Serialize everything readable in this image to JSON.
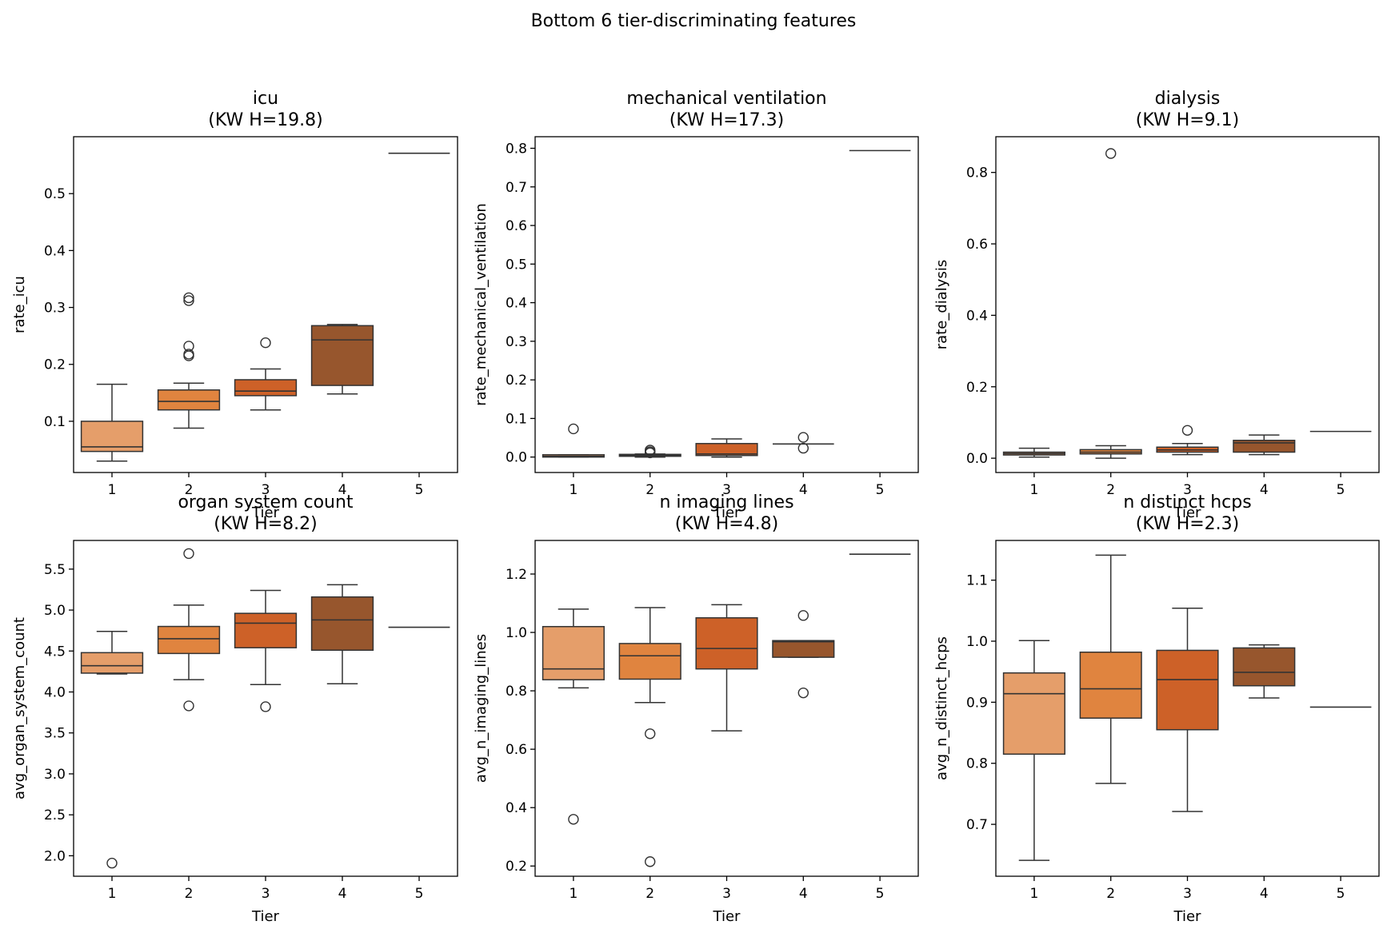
{
  "title": "Bottom 6 tier-discriminating features",
  "colors": {
    "tier1": "#e59e6a",
    "tier2": "#e0843f",
    "tier3": "#cd6128",
    "tier4": "#97562d",
    "tier5": "#8c4a20"
  },
  "chart_data": [
    {
      "type": "box",
      "title": "icu",
      "subtitle": "(KW H=19.8)",
      "xlabel": "Tier",
      "ylabel": "rate_icu",
      "categories": [
        "1",
        "2",
        "3",
        "4",
        "5"
      ],
      "ylim": [
        0.01,
        0.6
      ],
      "yticks": [
        0.1,
        0.2,
        0.3,
        0.4,
        0.5
      ],
      "ytick_labels": [
        "0.1",
        "0.2",
        "0.3",
        "0.4",
        "0.5"
      ],
      "boxes": [
        {
          "tier": "1",
          "whislo": 0.03,
          "q1": 0.047,
          "med": 0.055,
          "q3": 0.1,
          "whishi": 0.165,
          "fliers": []
        },
        {
          "tier": "2",
          "whislo": 0.088,
          "q1": 0.12,
          "med": 0.135,
          "q3": 0.155,
          "whishi": 0.167,
          "fliers": [
            0.215,
            0.218,
            0.232,
            0.312,
            0.317
          ]
        },
        {
          "tier": "3",
          "whislo": 0.12,
          "q1": 0.145,
          "med": 0.153,
          "q3": 0.173,
          "whishi": 0.192,
          "fliers": [
            0.238
          ]
        },
        {
          "tier": "4",
          "whislo": 0.148,
          "q1": 0.163,
          "med": 0.243,
          "q3": 0.268,
          "whishi": 0.27,
          "fliers": []
        },
        {
          "tier": "5",
          "whislo": 0.571,
          "q1": 0.571,
          "med": 0.571,
          "q3": 0.571,
          "whishi": 0.571,
          "fliers": []
        }
      ]
    },
    {
      "type": "box",
      "title": "mechanical ventilation",
      "subtitle": "(KW H=17.3)",
      "xlabel": "Tier",
      "ylabel": "rate_mechanical_ventilation",
      "categories": [
        "1",
        "2",
        "3",
        "4",
        "5"
      ],
      "ylim": [
        -0.04,
        0.83
      ],
      "yticks": [
        0.0,
        0.1,
        0.2,
        0.3,
        0.4,
        0.5,
        0.6,
        0.7,
        0.8
      ],
      "ytick_labels": [
        "0.0",
        "0.1",
        "0.2",
        "0.3",
        "0.4",
        "0.5",
        "0.6",
        "0.7",
        "0.8"
      ],
      "boxes": [
        {
          "tier": "1",
          "whislo": 0.0,
          "q1": 0.0,
          "med": 0.002,
          "q3": 0.006,
          "whishi": 0.006,
          "fliers": [
            0.073
          ]
        },
        {
          "tier": "2",
          "whislo": 0.0,
          "q1": 0.002,
          "med": 0.004,
          "q3": 0.007,
          "whishi": 0.008,
          "fliers": [
            0.011,
            0.014,
            0.018
          ]
        },
        {
          "tier": "3",
          "whislo": 0.0,
          "q1": 0.004,
          "med": 0.008,
          "q3": 0.035,
          "whishi": 0.047,
          "fliers": []
        },
        {
          "tier": "4",
          "whislo": 0.034,
          "q1": 0.034,
          "med": 0.034,
          "q3": 0.034,
          "whishi": 0.034,
          "fliers": [
            0.023,
            0.051
          ]
        },
        {
          "tier": "5",
          "whislo": 0.794,
          "q1": 0.794,
          "med": 0.794,
          "q3": 0.794,
          "whishi": 0.794,
          "fliers": []
        }
      ]
    },
    {
      "type": "box",
      "title": "dialysis",
      "subtitle": "(KW H=9.1)",
      "xlabel": "Tier",
      "ylabel": "rate_dialysis",
      "categories": [
        "1",
        "2",
        "3",
        "4",
        "5"
      ],
      "ylim": [
        -0.04,
        0.9
      ],
      "yticks": [
        0.0,
        0.2,
        0.4,
        0.6,
        0.8
      ],
      "ytick_labels": [
        "0.0",
        "0.2",
        "0.4",
        "0.6",
        "0.8"
      ],
      "boxes": [
        {
          "tier": "1",
          "whislo": 0.003,
          "q1": 0.009,
          "med": 0.013,
          "q3": 0.017,
          "whishi": 0.028,
          "fliers": []
        },
        {
          "tier": "2",
          "whislo": 0.0,
          "q1": 0.012,
          "med": 0.017,
          "q3": 0.024,
          "whishi": 0.035,
          "fliers": [
            0.853
          ]
        },
        {
          "tier": "3",
          "whislo": 0.01,
          "q1": 0.017,
          "med": 0.023,
          "q3": 0.031,
          "whishi": 0.041,
          "fliers": [
            0.078
          ]
        },
        {
          "tier": "4",
          "whislo": 0.01,
          "q1": 0.017,
          "med": 0.043,
          "q3": 0.05,
          "whishi": 0.065,
          "fliers": []
        },
        {
          "tier": "5",
          "whislo": 0.075,
          "q1": 0.075,
          "med": 0.075,
          "q3": 0.075,
          "whishi": 0.075,
          "fliers": []
        }
      ]
    },
    {
      "type": "box",
      "title": "organ system count",
      "subtitle": "(KW H=8.2)",
      "xlabel": "Tier",
      "ylabel": "avg_organ_system_count",
      "categories": [
        "1",
        "2",
        "3",
        "4",
        "5"
      ],
      "ylim": [
        1.75,
        5.85
      ],
      "yticks": [
        2.0,
        2.5,
        3.0,
        3.5,
        4.0,
        4.5,
        5.0,
        5.5
      ],
      "ytick_labels": [
        "2.0",
        "2.5",
        "3.0",
        "3.5",
        "4.0",
        "4.5",
        "5.0",
        "5.5"
      ],
      "boxes": [
        {
          "tier": "1",
          "whislo": 4.22,
          "q1": 4.23,
          "med": 4.32,
          "q3": 4.48,
          "whishi": 4.74,
          "fliers": [
            1.91
          ]
        },
        {
          "tier": "2",
          "whislo": 4.15,
          "q1": 4.47,
          "med": 4.65,
          "q3": 4.8,
          "whishi": 5.06,
          "fliers": [
            3.83,
            5.69
          ]
        },
        {
          "tier": "3",
          "whislo": 4.09,
          "q1": 4.54,
          "med": 4.84,
          "q3": 4.96,
          "whishi": 5.24,
          "fliers": [
            3.82
          ]
        },
        {
          "tier": "4",
          "whislo": 4.1,
          "q1": 4.51,
          "med": 4.88,
          "q3": 5.16,
          "whishi": 5.31,
          "fliers": []
        },
        {
          "tier": "5",
          "whislo": 4.79,
          "q1": 4.79,
          "med": 4.79,
          "q3": 4.79,
          "whishi": 4.79,
          "fliers": []
        }
      ]
    },
    {
      "type": "box",
      "title": "n imaging lines",
      "subtitle": "(KW H=4.8)",
      "xlabel": "Tier",
      "ylabel": "avg_n_imaging_lines",
      "categories": [
        "1",
        "2",
        "3",
        "4",
        "5"
      ],
      "ylim": [
        0.165,
        1.315
      ],
      "yticks": [
        0.2,
        0.4,
        0.6,
        0.8,
        1.0,
        1.2
      ],
      "ytick_labels": [
        "0.2",
        "0.4",
        "0.6",
        "0.8",
        "1.0",
        "1.2"
      ],
      "boxes": [
        {
          "tier": "1",
          "whislo": 0.81,
          "q1": 0.838,
          "med": 0.875,
          "q3": 1.02,
          "whishi": 1.08,
          "fliers": [
            0.36
          ]
        },
        {
          "tier": "2",
          "whislo": 0.76,
          "q1": 0.84,
          "med": 0.92,
          "q3": 0.962,
          "whishi": 1.085,
          "fliers": [
            0.653,
            0.215
          ]
        },
        {
          "tier": "3",
          "whislo": 0.663,
          "q1": 0.875,
          "med": 0.945,
          "q3": 1.05,
          "whishi": 1.095,
          "fliers": []
        },
        {
          "tier": "4",
          "whislo": 0.915,
          "q1": 0.915,
          "med": 0.968,
          "q3": 0.972,
          "whishi": 0.972,
          "fliers": [
            0.793,
            1.058
          ]
        },
        {
          "tier": "5",
          "whislo": 1.268,
          "q1": 1.268,
          "med": 1.268,
          "q3": 1.268,
          "whishi": 1.268,
          "fliers": []
        }
      ]
    },
    {
      "type": "box",
      "title": "n distinct hcps",
      "subtitle": "(KW H=2.3)",
      "xlabel": "Tier",
      "ylabel": "avg_n_distinct_hcps",
      "categories": [
        "1",
        "2",
        "3",
        "4",
        "5"
      ],
      "ylim": [
        0.615,
        1.165
      ],
      "yticks": [
        0.7,
        0.8,
        0.9,
        1.0,
        1.1
      ],
      "ytick_labels": [
        "0.7",
        "0.8",
        "0.9",
        "1.0",
        "1.1"
      ],
      "boxes": [
        {
          "tier": "1",
          "whislo": 0.641,
          "q1": 0.815,
          "med": 0.914,
          "q3": 0.948,
          "whishi": 1.001,
          "fliers": []
        },
        {
          "tier": "2",
          "whislo": 0.767,
          "q1": 0.874,
          "med": 0.922,
          "q3": 0.982,
          "whishi": 1.141,
          "fliers": []
        },
        {
          "tier": "3",
          "whislo": 0.721,
          "q1": 0.855,
          "med": 0.937,
          "q3": 0.985,
          "whishi": 1.054,
          "fliers": []
        },
        {
          "tier": "4",
          "whislo": 0.907,
          "q1": 0.927,
          "med": 0.949,
          "q3": 0.989,
          "whishi": 0.994,
          "fliers": []
        },
        {
          "tier": "5",
          "whislo": 0.892,
          "q1": 0.892,
          "med": 0.892,
          "q3": 0.892,
          "whishi": 0.892,
          "fliers": []
        }
      ]
    }
  ]
}
